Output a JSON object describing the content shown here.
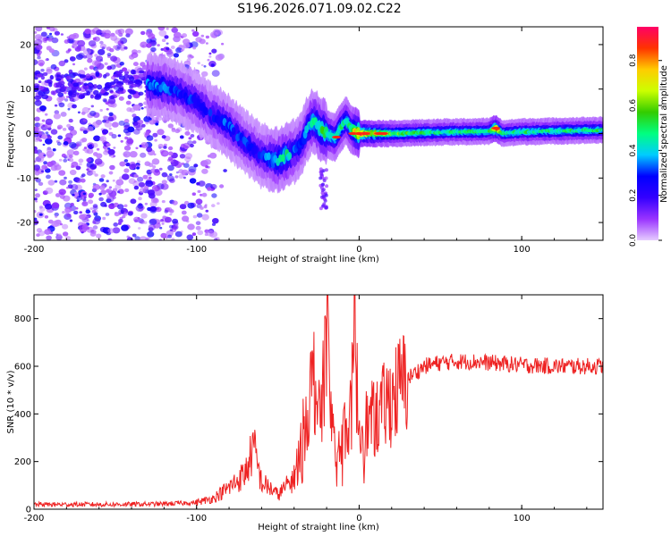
{
  "title": "S196.2026.071.09.02.C22",
  "chart_data": [
    {
      "type": "heatmap",
      "name": "spectrogram",
      "xlabel": "Height of straight line (km)",
      "ylabel": "Frequency (Hz)",
      "xlim": [
        -200,
        150
      ],
      "ylim": [
        -24,
        24
      ],
      "xticks": [
        -200,
        -100,
        0,
        100
      ],
      "yticks": [
        -20,
        -10,
        0,
        10,
        20
      ],
      "colorbar": {
        "label": "Normalized spectral amplitude",
        "min": 0.0,
        "max": 0.95,
        "ticks": [
          0.0,
          0.2,
          0.4,
          0.6,
          0.8
        ],
        "tick_labels": [
          "0.0",
          "0.2",
          "0.4",
          "0.6",
          "0.8"
        ],
        "colors": [
          "#e6ccff",
          "#9933ff",
          "#3300ff",
          "#0000ff",
          "#00ccff",
          "#00ff80",
          "#33cc00",
          "#ccff00",
          "#ffcc00",
          "#ff3300",
          "#ff0066"
        ]
      },
      "ridge": {
        "x": [
          -130,
          -120,
          -110,
          -100,
          -90,
          -80,
          -70,
          -60,
          -50,
          -45,
          -40,
          -35,
          -32,
          -28,
          -25,
          -20,
          -15,
          -12,
          -8,
          -5,
          0,
          20,
          50,
          80,
          84,
          88,
          100,
          150
        ],
        "y": [
          11,
          10.5,
          9,
          7,
          4,
          1.5,
          -2,
          -5,
          -6,
          -5,
          -4,
          -2,
          1,
          3,
          1.5,
          0,
          -1,
          1,
          3,
          1,
          0,
          0,
          0.3,
          0.5,
          1.2,
          0,
          0.4,
          0.8
        ],
        "amp": [
          0.35,
          0.35,
          0.3,
          0.3,
          0.3,
          0.35,
          0.3,
          0.3,
          0.45,
          0.5,
          0.35,
          0.35,
          0.4,
          0.45,
          0.5,
          0.55,
          0.45,
          0.5,
          0.45,
          0.5,
          0.9,
          0.6,
          0.5,
          0.5,
          0.9,
          0.5,
          0.5,
          0.5
        ]
      },
      "noise_region_x": [
        -200,
        -105
      ]
    },
    {
      "type": "line",
      "name": "snr",
      "xlabel": "Height of straight line (km)",
      "ylabel": "SNR (10 * v/v)",
      "xlim": [
        -200,
        150
      ],
      "ylim": [
        0,
        900
      ],
      "xticks": [
        -200,
        -100,
        0,
        100
      ],
      "yticks": [
        0,
        200,
        400,
        600,
        800
      ],
      "color": "#ee2222",
      "series": [
        {
          "name": "SNR",
          "x": [
            -200,
            -150,
            -120,
            -100,
            -90,
            -80,
            -70,
            -65,
            -60,
            -55,
            -50,
            -45,
            -40,
            -35,
            -32,
            -30,
            -27,
            -25,
            -22,
            -20,
            -18,
            -15,
            -12,
            -10,
            -5,
            -3,
            0,
            5,
            10,
            20,
            30,
            40,
            50,
            60,
            70,
            80,
            90,
            100,
            120,
            150
          ],
          "values": [
            20,
            20,
            22,
            28,
            45,
            90,
            150,
            260,
            110,
            90,
            60,
            95,
            130,
            300,
            420,
            490,
            580,
            360,
            500,
            880,
            390,
            340,
            270,
            330,
            380,
            760,
            330,
            360,
            380,
            470,
            550,
            600,
            615,
            620,
            620,
            615,
            610,
            605,
            600,
            600
          ]
        }
      ]
    }
  ]
}
